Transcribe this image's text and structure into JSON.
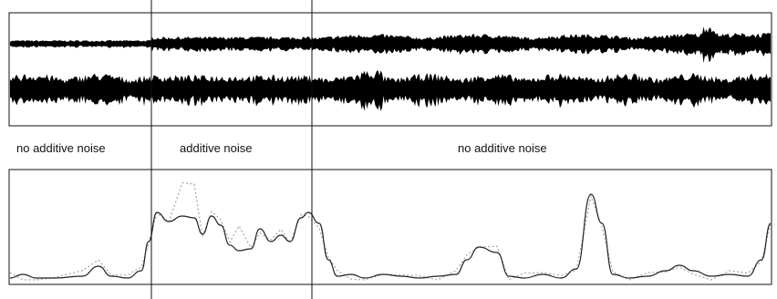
{
  "segments": [
    {
      "label": "no additive noise"
    },
    {
      "label": "additive noise"
    },
    {
      "label": "no additive noise"
    }
  ],
  "colors": {
    "waveform": "#000000",
    "frame": "#111111",
    "feature_line": "#222222",
    "feature_dotted": "#aaaaaa"
  }
}
